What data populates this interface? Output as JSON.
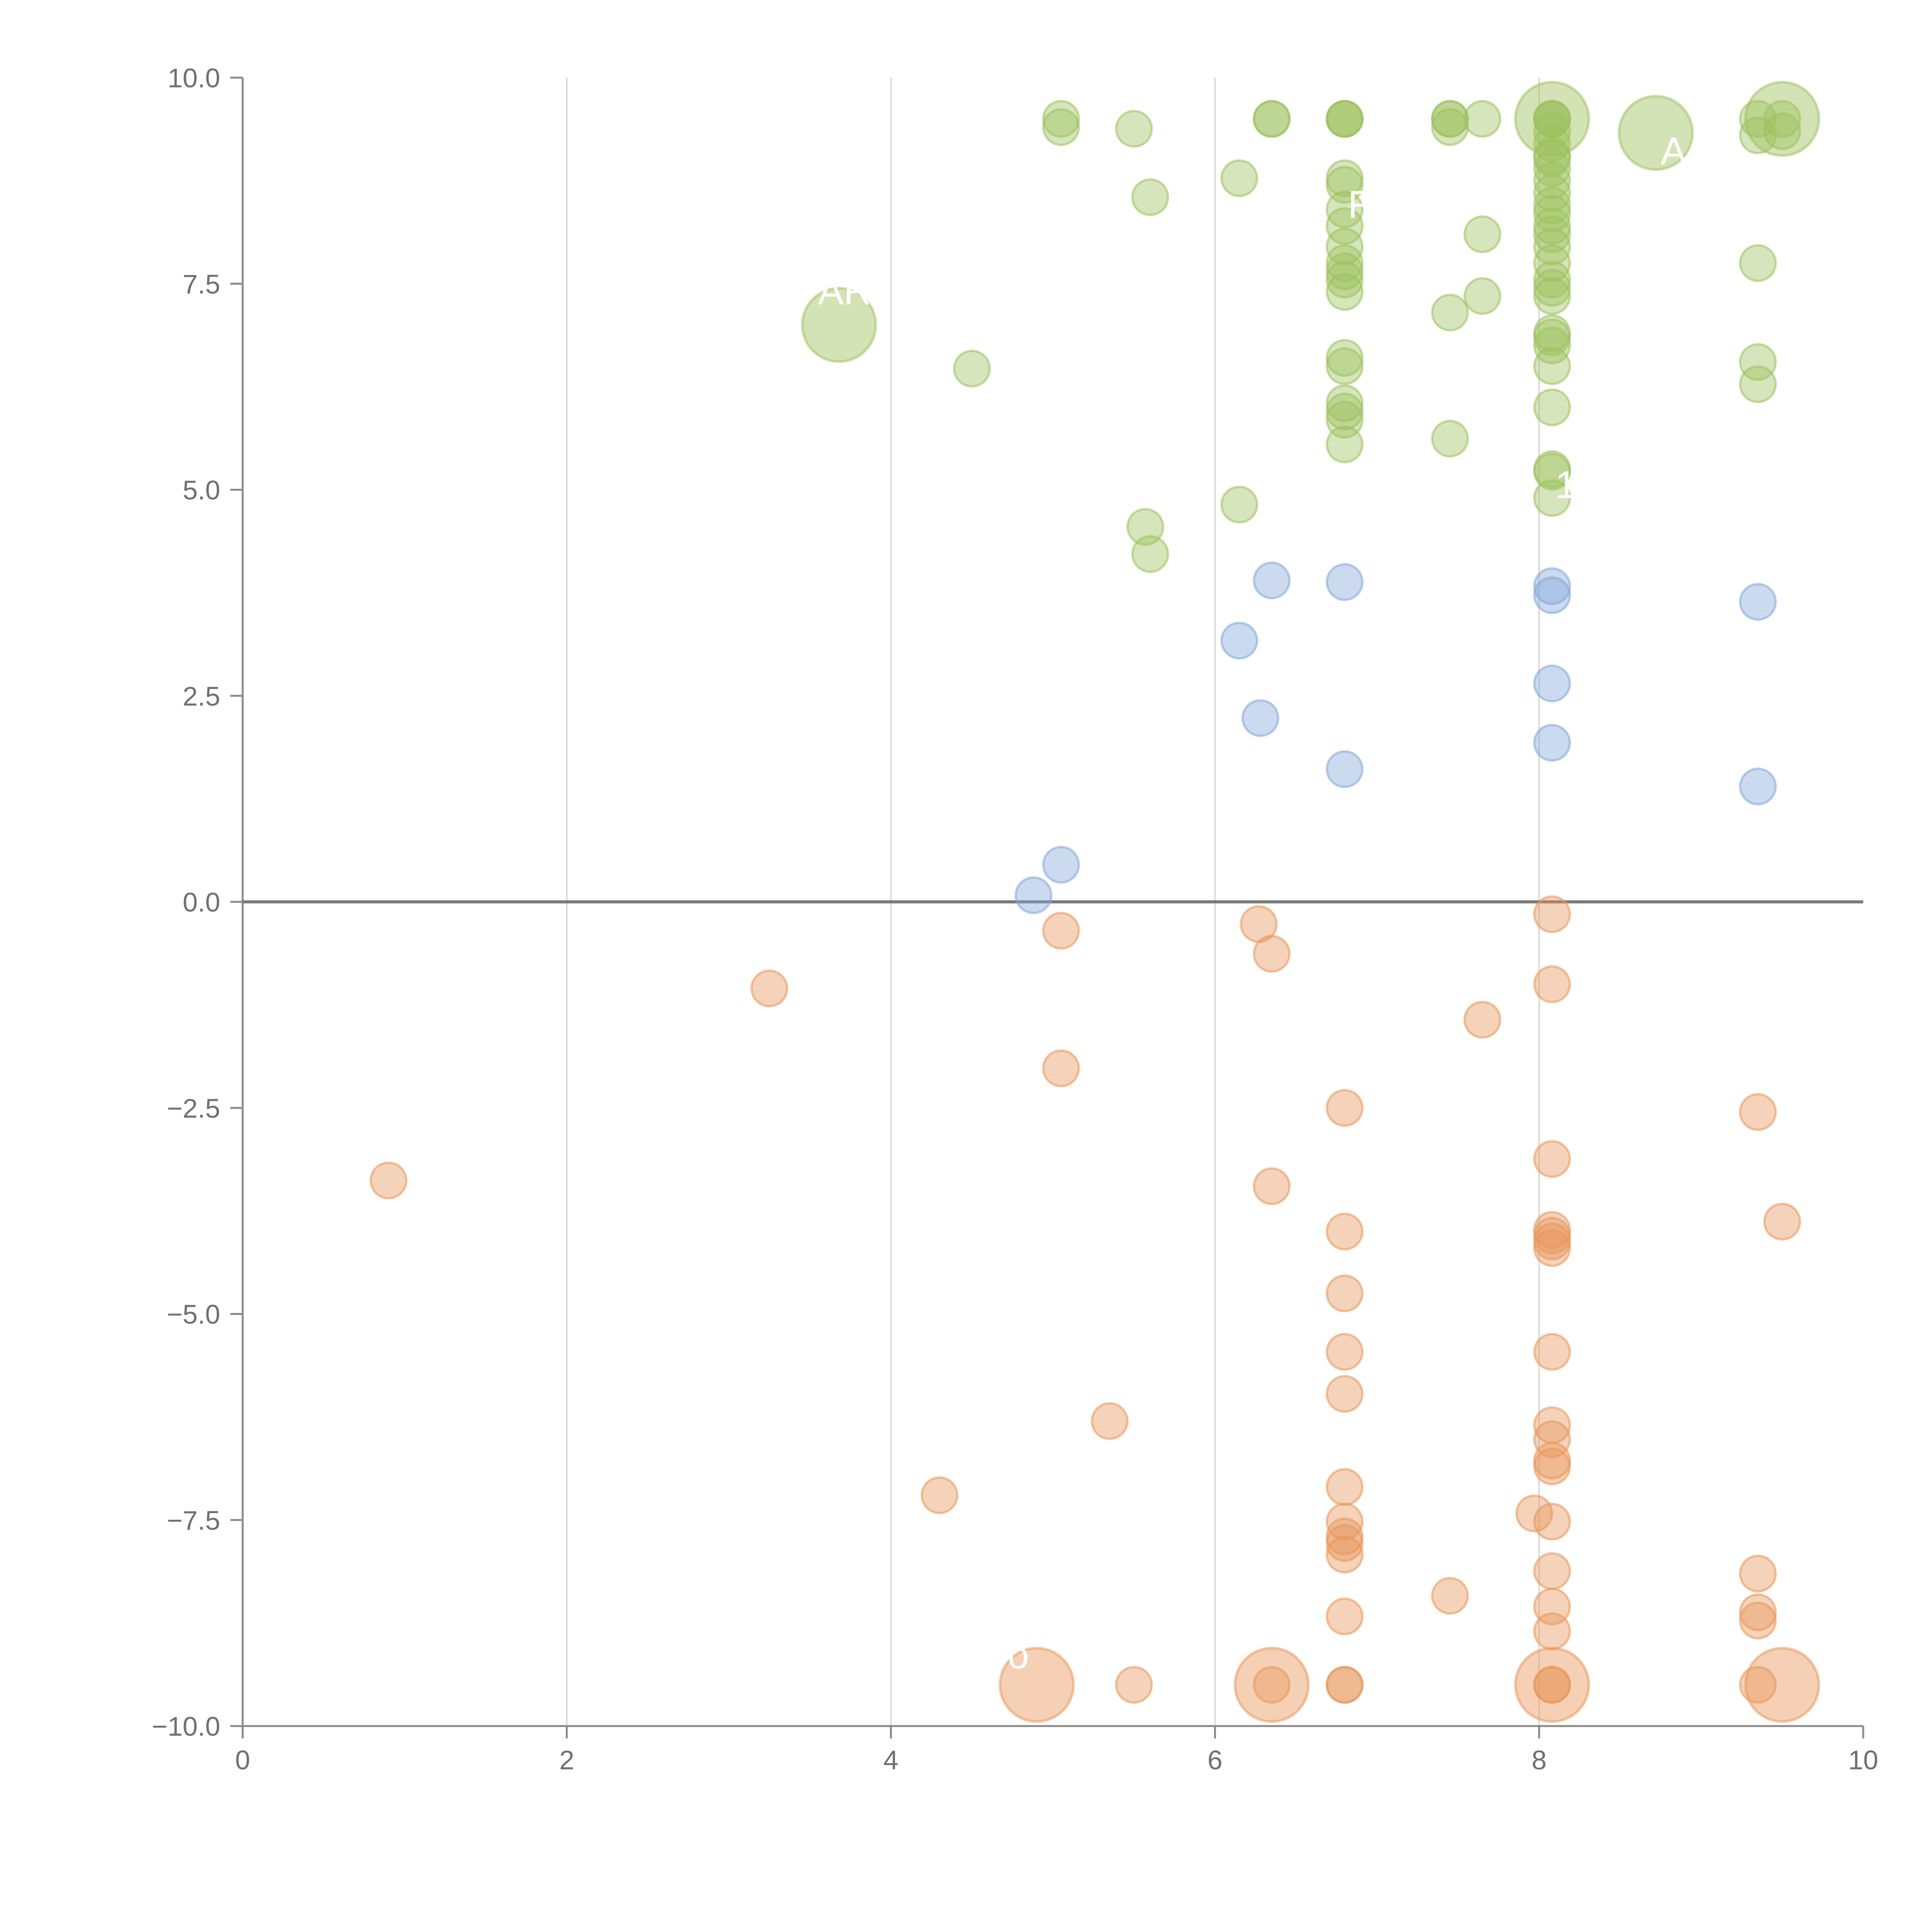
{
  "chart_data": {
    "type": "scatter",
    "title": "",
    "xlabel": "",
    "ylabel": "",
    "xlim": [
      0,
      10
    ],
    "ylim": [
      -10,
      10
    ],
    "x_ticks": [
      "0",
      "2",
      "4",
      "6",
      "8",
      "10"
    ],
    "y_ticks": [
      "−10.0",
      "−7.5",
      "−5.0",
      "−2.5",
      "0.0",
      "2.5",
      "5.0",
      "7.5",
      "10.0"
    ],
    "grid_x": [
      2,
      4,
      6,
      8
    ],
    "zero_line": 0,
    "colors": {
      "green": "#9dc15e",
      "blue": "#84a8d8",
      "orange": "#e8965a"
    },
    "series": [
      {
        "name": "green",
        "points": [
          [
            5.05,
            9.5
          ],
          [
            5.05,
            9.4
          ],
          [
            5.5,
            9.38
          ],
          [
            6.35,
            9.5
          ],
          [
            6.35,
            9.5
          ],
          [
            6.8,
            9.5
          ],
          [
            6.8,
            9.5
          ],
          [
            6.8,
            9.5
          ],
          [
            7.45,
            9.5
          ],
          [
            7.45,
            9.5
          ],
          [
            7.45,
            9.4
          ],
          [
            7.65,
            9.5
          ],
          [
            8.08,
            9.5
          ],
          [
            8.08,
            9.5
          ],
          [
            8.08,
            9.5
          ],
          [
            8.08,
            9.35
          ],
          [
            9.35,
            9.5
          ],
          [
            9.35,
            9.3
          ],
          [
            9.5,
            9.5
          ],
          [
            9.5,
            9.35
          ],
          [
            8.08,
            9.2
          ],
          [
            8.08,
            9.05
          ],
          [
            8.08,
            9.02
          ],
          [
            8.08,
            8.9
          ],
          [
            8.08,
            8.75
          ],
          [
            8.08,
            8.6
          ],
          [
            8.08,
            8.45
          ],
          [
            8.08,
            8.35
          ],
          [
            8.08,
            8.2
          ],
          [
            8.08,
            8.1
          ],
          [
            8.08,
            7.95
          ],
          [
            8.08,
            7.75
          ],
          [
            8.08,
            7.55
          ],
          [
            8.08,
            7.45
          ],
          [
            8.08,
            7.35
          ],
          [
            8.08,
            6.9
          ],
          [
            8.08,
            6.85
          ],
          [
            8.08,
            6.75
          ],
          [
            8.08,
            6.5
          ],
          [
            8.08,
            6.0
          ],
          [
            8.08,
            5.25
          ],
          [
            8.08,
            5.22
          ],
          [
            8.08,
            4.9
          ],
          [
            6.8,
            8.78
          ],
          [
            6.8,
            8.7
          ],
          [
            6.8,
            8.4
          ],
          [
            6.8,
            8.2
          ],
          [
            6.8,
            7.95
          ],
          [
            6.8,
            7.75
          ],
          [
            6.8,
            7.65
          ],
          [
            6.8,
            7.55
          ],
          [
            6.8,
            7.4
          ],
          [
            6.8,
            6.6
          ],
          [
            6.8,
            6.5
          ],
          [
            6.8,
            6.05
          ],
          [
            6.8,
            5.95
          ],
          [
            6.8,
            5.85
          ],
          [
            6.8,
            5.55
          ],
          [
            5.6,
            8.55
          ],
          [
            6.15,
            8.78
          ],
          [
            7.65,
            8.1
          ],
          [
            7.45,
            7.15
          ],
          [
            7.65,
            7.35
          ],
          [
            7.45,
            5.62
          ],
          [
            9.35,
            7.75
          ],
          [
            9.35,
            6.55
          ],
          [
            9.35,
            6.28
          ],
          [
            4.5,
            6.47
          ],
          [
            6.15,
            4.82
          ],
          [
            5.57,
            4.55
          ],
          [
            5.6,
            4.22
          ]
        ]
      },
      {
        "name": "blue",
        "points": [
          [
            6.35,
            3.9
          ],
          [
            6.8,
            3.88
          ],
          [
            8.08,
            3.83
          ],
          [
            8.08,
            3.72
          ],
          [
            9.35,
            3.64
          ],
          [
            6.15,
            3.17
          ],
          [
            8.08,
            2.65
          ],
          [
            6.28,
            2.23
          ],
          [
            8.08,
            1.93
          ],
          [
            6.8,
            1.61
          ],
          [
            9.35,
            1.4
          ],
          [
            5.05,
            0.45
          ],
          [
            4.88,
            0.08
          ]
        ]
      },
      {
        "name": "orange",
        "points": [
          [
            8.08,
            -0.15
          ],
          [
            6.27,
            -0.27
          ],
          [
            5.05,
            -0.35
          ],
          [
            6.35,
            -0.63
          ],
          [
            8.08,
            -1.0
          ],
          [
            3.25,
            -1.05
          ],
          [
            7.65,
            -1.43
          ],
          [
            5.05,
            -2.02
          ],
          [
            6.8,
            -2.5
          ],
          [
            9.35,
            -2.55
          ],
          [
            8.08,
            -3.12
          ],
          [
            0.9,
            -3.38
          ],
          [
            6.35,
            -3.45
          ],
          [
            9.5,
            -3.88
          ],
          [
            6.8,
            -4.0
          ],
          [
            8.08,
            -3.98
          ],
          [
            8.08,
            -4.05
          ],
          [
            8.08,
            -4.12
          ],
          [
            8.08,
            -4.2
          ],
          [
            6.8,
            -4.75
          ],
          [
            6.8,
            -5.46
          ],
          [
            8.08,
            -5.46
          ],
          [
            6.8,
            -5.97
          ],
          [
            5.35,
            -6.3
          ],
          [
            8.08,
            -6.35
          ],
          [
            8.08,
            -6.52
          ],
          [
            8.08,
            -6.78
          ],
          [
            8.08,
            -6.85
          ],
          [
            6.8,
            -7.1
          ],
          [
            4.3,
            -7.2
          ],
          [
            7.97,
            -7.42
          ],
          [
            8.08,
            -7.52
          ],
          [
            6.8,
            -7.52
          ],
          [
            6.8,
            -7.7
          ],
          [
            6.8,
            -7.78
          ],
          [
            6.8,
            -7.92
          ],
          [
            8.08,
            -8.12
          ],
          [
            9.35,
            -8.15
          ],
          [
            7.45,
            -8.42
          ],
          [
            8.08,
            -8.55
          ],
          [
            9.35,
            -8.62
          ],
          [
            6.8,
            -8.67
          ],
          [
            9.35,
            -8.72
          ],
          [
            8.08,
            -8.85
          ],
          [
            5.5,
            -9.5
          ],
          [
            6.35,
            -9.5
          ],
          [
            6.8,
            -9.5
          ],
          [
            6.8,
            -9.5
          ],
          [
            8.08,
            -9.5
          ],
          [
            8.08,
            -9.5
          ],
          [
            9.35,
            -9.5
          ]
        ]
      }
    ],
    "large_points": [
      {
        "series": "green",
        "x": 3.68,
        "y": 7.0
      },
      {
        "series": "green",
        "x": 8.08,
        "y": 9.5
      },
      {
        "series": "green",
        "x": 8.72,
        "y": 9.33
      },
      {
        "series": "green",
        "x": 9.5,
        "y": 9.5
      },
      {
        "series": "orange",
        "x": 4.9,
        "y": -9.5
      },
      {
        "series": "orange",
        "x": 6.35,
        "y": -9.5
      },
      {
        "series": "orange",
        "x": 8.08,
        "y": -9.5
      },
      {
        "series": "orange",
        "x": 9.5,
        "y": -9.5
      }
    ],
    "annotations": [
      {
        "text": "AR",
        "x": 3.55,
        "y": 7.25
      },
      {
        "text": "R",
        "x": 6.82,
        "y": 8.3
      },
      {
        "text": "A",
        "x": 8.75,
        "y": 8.95
      },
      {
        "text": "1",
        "x": 8.1,
        "y": 4.9
      },
      {
        "text": "o",
        "x": 4.72,
        "y": -9.3
      }
    ]
  }
}
